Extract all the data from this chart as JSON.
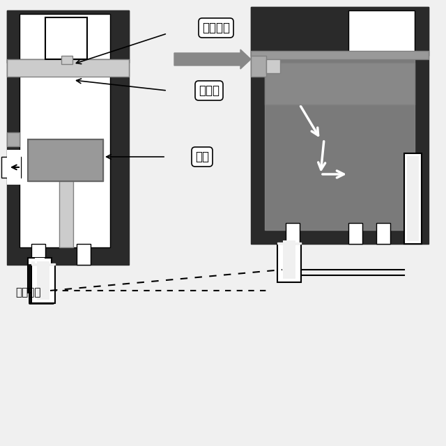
{
  "bg_color": "#f0f0f0",
  "title": "",
  "label_jie_pai_qi_guan": "接排气管",
  "label_pai_qi_fa": "排气阀",
  "label_huo_sai": "活塞",
  "label_chu_shi_zhuang_tai": "初始状态",
  "arrow_color": "#888888",
  "dark_color": "#2a2a2a",
  "mid_gray": "#888888",
  "light_gray": "#cccccc",
  "white": "#ffffff",
  "dark_gray2": "#555555",
  "valve_gray": "#aaaaaa",
  "piston_gray": "#999999",
  "right_fill": "#7a7a7a"
}
